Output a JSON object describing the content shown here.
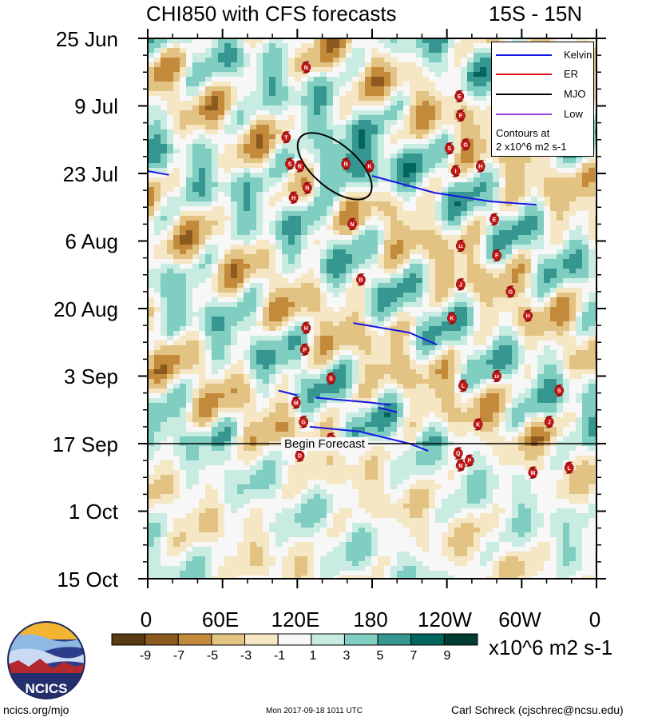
{
  "title": "CHI850 with CFS forecasts",
  "region": "15S - 15N",
  "footer": {
    "url": "ncics.org/mjo",
    "timestamp": "Mon 2017-09-18 1011 UTC",
    "author": "Carl Schreck (cjschrec@ncsu.edu)",
    "logo_text": "NCICS"
  },
  "legend": {
    "items": [
      {
        "label": "Kelvin",
        "color": "#1515e6"
      },
      {
        "label": "ER",
        "color": "#e01010"
      },
      {
        "label": "MJO",
        "color": "#000000"
      },
      {
        "label": "Low",
        "color": "#a040e0"
      }
    ],
    "note_line1": "Contours at",
    "note_line2": "2 x10^6 m2 s-1"
  },
  "colorbar": {
    "units": "x10^6 m2 s-1",
    "labels": [
      "-9",
      "-7",
      "-5",
      "-3",
      "-1",
      "1",
      "3",
      "5",
      "7",
      "9"
    ],
    "colors": [
      "#5a3a10",
      "#8c5a1e",
      "#c48a3c",
      "#e2c383",
      "#f5e6c4",
      "#f7f7f7",
      "#c9ece2",
      "#80cdc1",
      "#35978f",
      "#01665e",
      "#003c30"
    ]
  },
  "forecast_label": "Begin Forecast",
  "chart_data": {
    "type": "heatmap",
    "xlabel": "longitude",
    "ylabel": "date",
    "x_range": [
      0,
      360
    ],
    "x_ticks": [
      "0",
      "60E",
      "120E",
      "180",
      "120W",
      "60W",
      "0"
    ],
    "y_ticks": [
      "25 Jun",
      "9 Jul",
      "23 Jul",
      "6 Aug",
      "20 Aug",
      "3 Sep",
      "17 Sep",
      "1 Oct",
      "15 Oct"
    ],
    "y_range_days": [
      0,
      112
    ],
    "forecast_start_day": 84,
    "kelvin_waves": [
      [
        [
          0,
          27.5
        ],
        [
          17,
          28.3
        ]
      ],
      [
        [
          180,
          28.5
        ],
        [
          230,
          32.0
        ],
        [
          275,
          33.8
        ],
        [
          312,
          34.5
        ]
      ],
      [
        [
          165,
          59.0
        ],
        [
          210,
          61.0
        ],
        [
          232,
          63.5
        ]
      ],
      [
        [
          105,
          73.0
        ],
        [
          120,
          74.0
        ]
      ],
      [
        [
          135,
          74.5
        ],
        [
          180,
          75.5
        ],
        [
          195,
          76.0
        ]
      ],
      [
        [
          185,
          76.5
        ],
        [
          200,
          77.5
        ]
      ],
      [
        [
          130,
          80.5
        ],
        [
          170,
          81.5
        ],
        [
          210,
          84.0
        ],
        [
          225,
          85.5
        ]
      ]
    ],
    "mjo_contours": [
      {
        "lon_center": 150,
        "day_center": 26.5,
        "lon_radius": 36,
        "day_radius": 4.5,
        "angle": 40
      }
    ],
    "storms": [
      {
        "id": "N",
        "lon": 127,
        "day": 6
      },
      {
        "id": "E",
        "lon": 250,
        "day": 12
      },
      {
        "id": "F",
        "lon": 251,
        "day": 16
      },
      {
        "id": "T",
        "lon": 111,
        "day": 20.5
      },
      {
        "id": "G",
        "lon": 255,
        "day": 22
      },
      {
        "id": "S",
        "lon": 242,
        "day": 22.8
      },
      {
        "id": "S",
        "lon": 114,
        "day": 26
      },
      {
        "id": "R",
        "lon": 122,
        "day": 26.5
      },
      {
        "id": "N",
        "lon": 159,
        "day": 26
      },
      {
        "id": "K",
        "lon": 178,
        "day": 26.5
      },
      {
        "id": "H",
        "lon": 267,
        "day": 26.5
      },
      {
        "id": "I",
        "lon": 247,
        "day": 27.5
      },
      {
        "id": "N",
        "lon": 128,
        "day": 31
      },
      {
        "id": "H",
        "lon": 117,
        "day": 33
      },
      {
        "id": "E",
        "lon": 278,
        "day": 37.5
      },
      {
        "id": "N",
        "lon": 164,
        "day": 38.5
      },
      {
        "id": "11",
        "lon": 251,
        "day": 43
      },
      {
        "id": "F",
        "lon": 280,
        "day": 45
      },
      {
        "id": "B",
        "lon": 171,
        "day": 50
      },
      {
        "id": "J",
        "lon": 251,
        "day": 51
      },
      {
        "id": "G",
        "lon": 291,
        "day": 52.5
      },
      {
        "id": "H",
        "lon": 305,
        "day": 57.5
      },
      {
        "id": "K",
        "lon": 244,
        "day": 58
      },
      {
        "id": "H",
        "lon": 127,
        "day": 60
      },
      {
        "id": "P",
        "lon": 126,
        "day": 64.5
      },
      {
        "id": "S",
        "lon": 147,
        "day": 70.5
      },
      {
        "id": "10",
        "lon": 280,
        "day": 70
      },
      {
        "id": "L",
        "lon": 253,
        "day": 72
      },
      {
        "id": "S",
        "lon": 330,
        "day": 73
      },
      {
        "id": "M",
        "lon": 119,
        "day": 75.5
      },
      {
        "id": "G",
        "lon": 125,
        "day": 79.5
      },
      {
        "id": "K",
        "lon": 265,
        "day": 80
      },
      {
        "id": "J",
        "lon": 322,
        "day": 79.5
      },
      {
        "id": "T",
        "lon": 147,
        "day": 83
      },
      {
        "id": "D",
        "lon": 122,
        "day": 86.5
      },
      {
        "id": "Q",
        "lon": 249,
        "day": 86
      },
      {
        "id": "N",
        "lon": 251,
        "day": 88.5
      },
      {
        "id": "P",
        "lon": 258,
        "day": 87.5
      },
      {
        "id": "L",
        "lon": 338,
        "day": 89
      },
      {
        "id": "M",
        "lon": 309,
        "day": 90
      }
    ]
  }
}
